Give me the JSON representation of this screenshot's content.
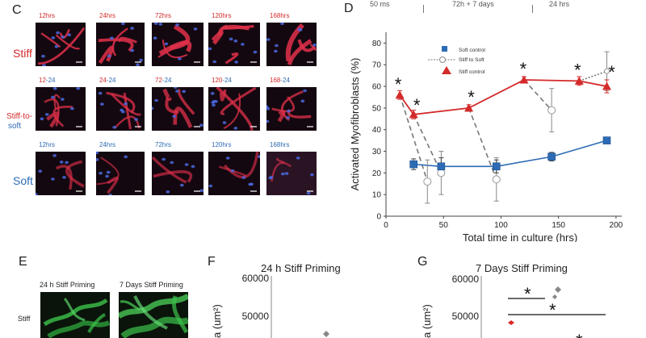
{
  "panels": {
    "C": "C",
    "D": "D",
    "E": "E",
    "F": "F",
    "G": "G"
  },
  "panel_c": {
    "rows": [
      {
        "label": "Stiff",
        "label_color": "#d42a2a",
        "tone": "stiff",
        "times": [
          "12hrs",
          "24hrs",
          "72hrs",
          "120hrs",
          "168hrs"
        ],
        "time_color": "#d42a2a"
      },
      {
        "label_line1": "Stiff-to-",
        "label_line2": "soft",
        "tone": "mixed",
        "times_red": [
          "12",
          "24",
          "72",
          "120",
          "168"
        ],
        "times_blue": [
          "-24",
          "-24",
          "-24",
          "-24",
          "-24"
        ]
      },
      {
        "label": "Soft",
        "label_color": "#2d6bb5",
        "tone": "soft",
        "times": [
          "12hrs",
          "24hrs",
          "72hrs",
          "120hrs",
          "168hrs"
        ],
        "time_color": "#2d6bb5"
      }
    ]
  },
  "panel_d": {
    "top_labels": [
      "50 ms",
      "72h + 7 days",
      "24 hrs"
    ],
    "chart_data": {
      "type": "line",
      "xlabel": "Total time in culture (hrs)",
      "ylabel": "Activated Myofibroblasts (%)",
      "xlim": [
        0,
        205
      ],
      "ylim": [
        0,
        85
      ],
      "xticks": [
        0,
        50,
        100,
        150,
        200
      ],
      "xtick_labels": [
        "0",
        "50",
        "100",
        "150",
        "200"
      ],
      "yticks": [
        0,
        10,
        20,
        30,
        40,
        50,
        60,
        70,
        80
      ],
      "ytick_labels": [
        "0",
        "10",
        "20",
        "30",
        "40",
        "50",
        "60",
        "70",
        "80"
      ],
      "legend": [
        "Soft control",
        "Stiff to Soft",
        "Stiff control"
      ],
      "legend_position": "top-left",
      "series": [
        {
          "name": "Soft control",
          "color": "#2d6bb5",
          "marker": "square",
          "x": [
            24,
            48,
            96,
            144,
            192
          ],
          "y": [
            24,
            23,
            23,
            27.5,
            35
          ],
          "err": [
            2.5,
            4,
            3,
            2,
            1.5
          ]
        },
        {
          "name": "Stiff control",
          "color": "#d42a2a",
          "marker": "triangle",
          "x": [
            12,
            24,
            72,
            120,
            168,
            192
          ],
          "y": [
            56,
            47,
            50,
            63,
            62.5,
            60
          ],
          "err": [
            2,
            2,
            1.5,
            1.5,
            2,
            3
          ]
        },
        {
          "name": "Stiff to Soft",
          "color": "#888888",
          "marker": "open-circle",
          "x": [
            36,
            48,
            96,
            144
          ],
          "y": [
            16,
            20,
            17,
            49
          ],
          "err": [
            10,
            10,
            10,
            10
          ]
        }
      ],
      "transitions": [
        {
          "from": [
            12,
            56
          ],
          "to": [
            36,
            16
          ]
        },
        {
          "from": [
            24,
            47
          ],
          "to": [
            48,
            20
          ]
        },
        {
          "from": [
            72,
            50
          ],
          "to": [
            96,
            17
          ]
        },
        {
          "from": [
            120,
            63
          ],
          "to": [
            144,
            49
          ]
        },
        {
          "from": [
            168,
            62.5
          ],
          "to": [
            192,
            67
          ]
        }
      ],
      "extra_point": {
        "x": 192,
        "y": 67,
        "err": 9
      },
      "significance": [
        {
          "x": 12,
          "y": 56
        },
        {
          "x": 24,
          "y": 47
        },
        {
          "x": 72,
          "y": 50
        },
        {
          "x": 120,
          "y": 63
        },
        {
          "x": 168,
          "y": 62.5
        },
        {
          "x": 192,
          "y": 60
        }
      ],
      "significance_mark": "*"
    }
  },
  "panel_e": {
    "col_labels": [
      "24 h Stiff Priming",
      "7 Days Stiff Priming"
    ],
    "row_label": "Stiff"
  },
  "panel_f": {
    "chart_data": {
      "type": "scatter",
      "title": "24 h Stiff Priming",
      "ylabel": "a (um²)",
      "yticks": [
        50000,
        60000
      ],
      "ytick_labels": [
        "50000",
        "60000"
      ],
      "points": [
        {
          "y": 44000,
          "color": "#888888",
          "marker": "diamond"
        }
      ]
    }
  },
  "panel_g": {
    "chart_data": {
      "type": "scatter",
      "title": "7 Days Stiff Priming",
      "ylabel": "a (um²)",
      "yticks": [
        50000,
        60000
      ],
      "ytick_labels": [
        "50000",
        "60000"
      ],
      "points": [
        {
          "y": 48000,
          "color": "#d42a2a",
          "marker": "diamond"
        },
        {
          "y": 56500,
          "color": "#888888",
          "marker": "diamond"
        },
        {
          "y": 55000,
          "color": "#888888",
          "marker": "diamond"
        }
      ],
      "significance_mark": "*"
    }
  }
}
